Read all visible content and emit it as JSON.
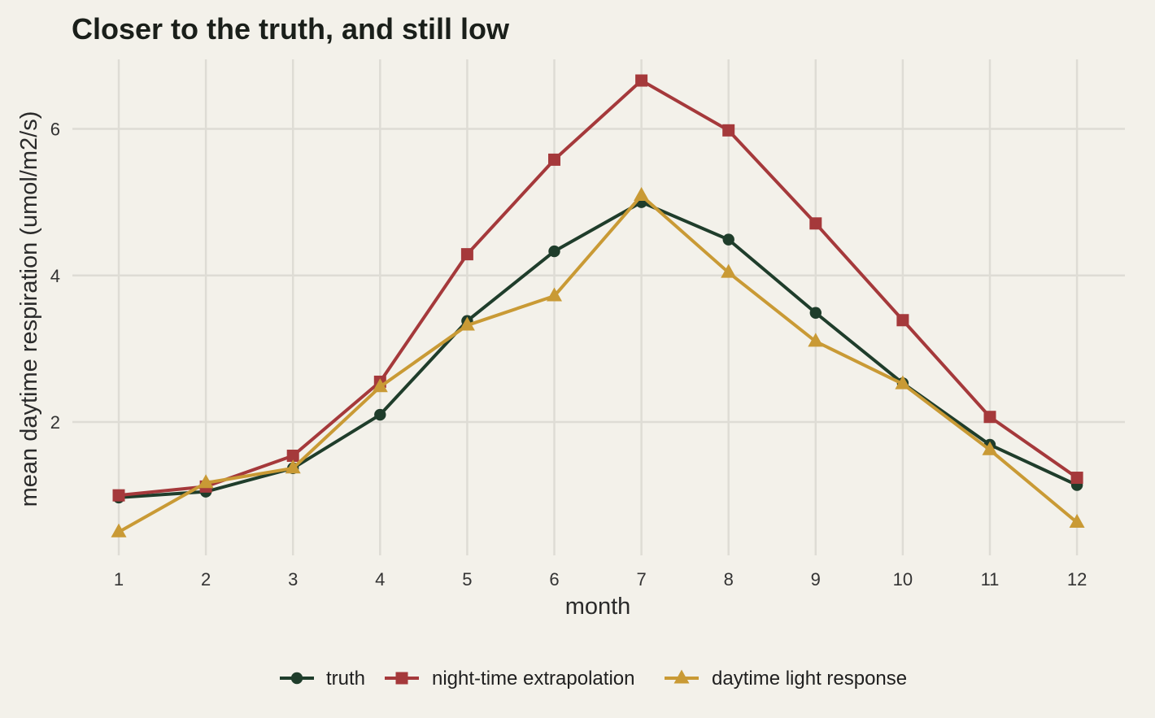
{
  "chart_data": {
    "type": "line",
    "title": "Closer to the truth, and still low",
    "xlabel": "month",
    "ylabel": "mean daytime respiration (umol/m2/s)",
    "x": [
      1,
      2,
      3,
      4,
      5,
      6,
      7,
      8,
      9,
      10,
      11,
      12
    ],
    "xticks": [
      "1",
      "2",
      "3",
      "4",
      "5",
      "6",
      "7",
      "8",
      "9",
      "10",
      "11",
      "12"
    ],
    "yticks": [
      2,
      4,
      6
    ],
    "ytick_labels": [
      "2",
      "4",
      "6"
    ],
    "xlim": [
      0.55,
      12.55
    ],
    "ylim": [
      0.3,
      6.95
    ],
    "grid": true,
    "legend_position": "bottom",
    "series": [
      {
        "name": "truth",
        "marker": "circle",
        "color": "#1f3d2b",
        "values": [
          0.97,
          1.05,
          1.37,
          2.1,
          3.38,
          4.33,
          5.0,
          4.49,
          3.49,
          2.53,
          1.69,
          1.14
        ]
      },
      {
        "name": "night-time extrapolation",
        "marker": "square",
        "color": "#a5393b",
        "values": [
          1.0,
          1.12,
          1.54,
          2.55,
          4.29,
          5.58,
          6.66,
          5.98,
          4.71,
          3.39,
          2.07,
          1.24
        ]
      },
      {
        "name": "daytime light response",
        "marker": "triangle",
        "color": "#c99a35",
        "values": [
          0.5,
          1.17,
          1.37,
          2.48,
          3.32,
          3.72,
          5.09,
          4.04,
          3.1,
          2.52,
          1.62,
          0.63
        ]
      }
    ]
  }
}
